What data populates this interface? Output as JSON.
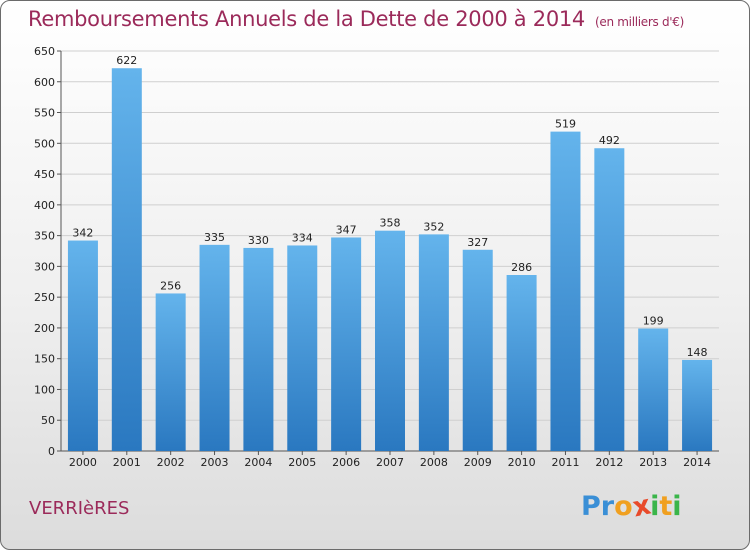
{
  "header": {
    "title": "Remboursements Annuels de la Dette de 2000 à 2014",
    "subtitle": "(en milliers d'€)"
  },
  "commune": "VERRIèRES",
  "logo": {
    "letters": [
      {
        "char": "P",
        "color": "#3a8fd6"
      },
      {
        "char": "r",
        "color": "#3a8fd6"
      },
      {
        "char": "o",
        "color": "#f0a020"
      },
      {
        "char": "x",
        "color": "#e84a2a"
      },
      {
        "char": "i",
        "color": "#3ab54a"
      },
      {
        "char": "t",
        "color": "#f0a020"
      },
      {
        "char": "i",
        "color": "#3ab54a"
      }
    ]
  },
  "colors": {
    "bar_top": "#64b4ec",
    "bar_bottom": "#2a78c0",
    "title": "#9b2a5a",
    "grid": "#cfcfcf"
  },
  "chart_data": {
    "type": "bar",
    "title": "Remboursements Annuels de la Dette de 2000 à 2014",
    "xlabel": "",
    "ylabel": "",
    "unit": "milliers d'€",
    "ylim": [
      0,
      650
    ],
    "yticks": [
      0,
      50,
      100,
      150,
      200,
      250,
      300,
      350,
      400,
      450,
      500,
      550,
      600,
      650
    ],
    "grid": true,
    "categories": [
      "2000",
      "2001",
      "2002",
      "2003",
      "2004",
      "2005",
      "2006",
      "2007",
      "2008",
      "2009",
      "2010",
      "2011",
      "2012",
      "2013",
      "2014"
    ],
    "values": [
      342,
      622,
      256,
      335,
      330,
      334,
      347,
      358,
      352,
      327,
      286,
      519,
      492,
      199,
      148
    ]
  }
}
